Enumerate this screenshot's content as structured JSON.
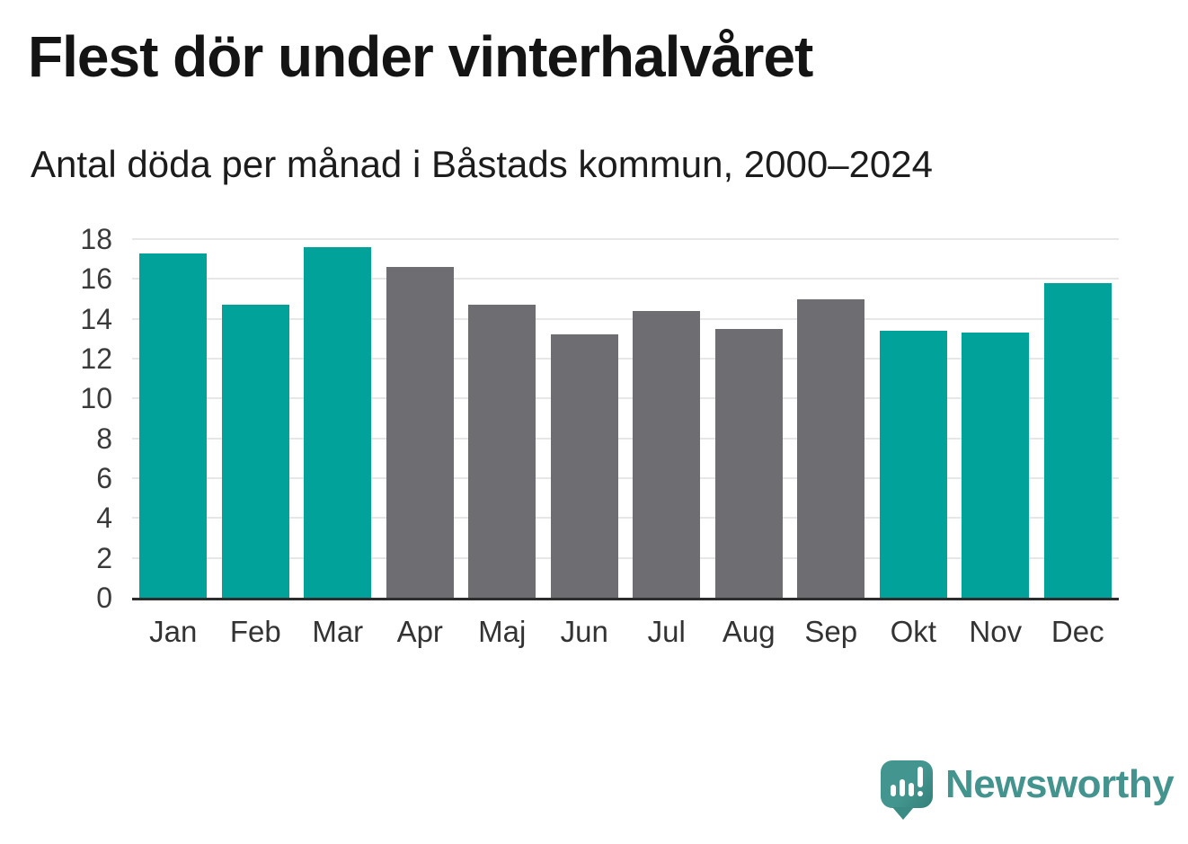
{
  "header": {
    "title": "Flest dör under vinterhalvåret",
    "subtitle": "Antal döda per månad i Båstads kommun, 2000–2024"
  },
  "chart_data": {
    "type": "bar",
    "title": "Flest dör under vinterhalvåret",
    "subtitle": "Antal döda per månad i Båstads kommun, 2000–2024",
    "categories": [
      "Jan",
      "Feb",
      "Mar",
      "Apr",
      "Maj",
      "Jun",
      "Jul",
      "Aug",
      "Sep",
      "Okt",
      "Nov",
      "Dec"
    ],
    "values": [
      17.3,
      14.7,
      17.6,
      16.6,
      14.7,
      13.2,
      14.4,
      13.5,
      15.0,
      13.4,
      13.3,
      15.8
    ],
    "bar_colors": [
      "#00a29a",
      "#00a29a",
      "#00a29a",
      "#6d6d72",
      "#6d6d72",
      "#6d6d72",
      "#6d6d72",
      "#6d6d72",
      "#6d6d72",
      "#00a29a",
      "#00a29a",
      "#00a29a"
    ],
    "color_meaning": {
      "winter_months": "#00a29a",
      "summer_months": "#6d6d72"
    },
    "xlabel": "",
    "ylabel": "",
    "ylim": [
      0,
      18
    ],
    "yticks": [
      0,
      2,
      4,
      6,
      8,
      10,
      12,
      14,
      16,
      18
    ],
    "grid": "horizontal",
    "legend_position": "none"
  },
  "branding": {
    "logo_text": "Newsworthy",
    "logo_icon": "newsworthy-speech-bubble-bar-chart-icon",
    "logo_color": "#43948e"
  }
}
